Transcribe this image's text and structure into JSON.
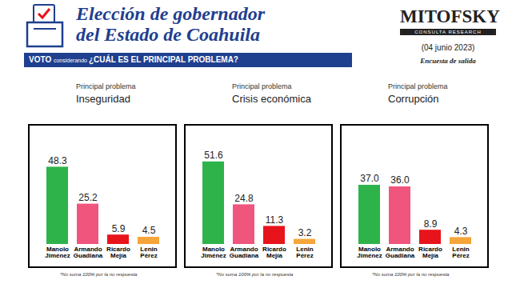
{
  "header": {
    "title": [
      "Elección de gobernador",
      "del Estado de Coahuila"
    ],
    "banner": {
      "bold": "VOTO",
      "small": "considerando",
      "rest": "¿CUÁL ES EL PRINCIPAL PROBLEMA?"
    },
    "brand": "MITOFSKY",
    "brand_subtitle": "CONSULTA RESEARCH",
    "date": "(04 junio 2023)",
    "survey": "Encuesta de salida"
  },
  "chart_data": [
    {
      "type": "bar",
      "subtitle": "Principal problema",
      "title": "Inseguridad",
      "categories": [
        "Manolo Jiménez",
        "Armando Guadiana",
        "Ricardo Mejía",
        "Lenin Pérez"
      ],
      "values": [
        48.3,
        25.2,
        5.9,
        4.5
      ],
      "colors": [
        "#2eb34b",
        "#f0557e",
        "#e8141b",
        "#f5a53a"
      ],
      "ylim": [
        0,
        65
      ],
      "data_labels": true,
      "tick_labels": "x",
      "caption": "*No suma 100% por la no respuesta"
    },
    {
      "type": "bar",
      "subtitle": "Principal problema",
      "title": "Crisis económica",
      "categories": [
        "Manolo Jiménez",
        "Armando Guadiana",
        "Ricardo Mejía",
        "Lenin Pérez"
      ],
      "values": [
        51.6,
        24.8,
        11.3,
        3.2
      ],
      "colors": [
        "#2eb34b",
        "#f0557e",
        "#e8141b",
        "#f5a53a"
      ],
      "ylim": [
        0,
        65
      ],
      "data_labels": true,
      "tick_labels": "x",
      "caption": "*No suma 100% por la no respuesta"
    },
    {
      "type": "bar",
      "subtitle": "Principal problema",
      "title": "Corrupción",
      "categories": [
        "Manolo Jiménez",
        "Armando Guadiana",
        "Ricardo Mejía",
        "Lenin Pérez"
      ],
      "values": [
        37.0,
        36.0,
        8.9,
        4.3
      ],
      "value_labels": [
        "37.0",
        "36.0",
        "8.9",
        "4.3"
      ],
      "colors": [
        "#2eb34b",
        "#f0557e",
        "#e8141b",
        "#f5a53a"
      ],
      "ylim": [
        0,
        65
      ],
      "data_labels": true,
      "tick_labels": "x",
      "caption": "*No suma 100% por la no respuesta"
    }
  ]
}
